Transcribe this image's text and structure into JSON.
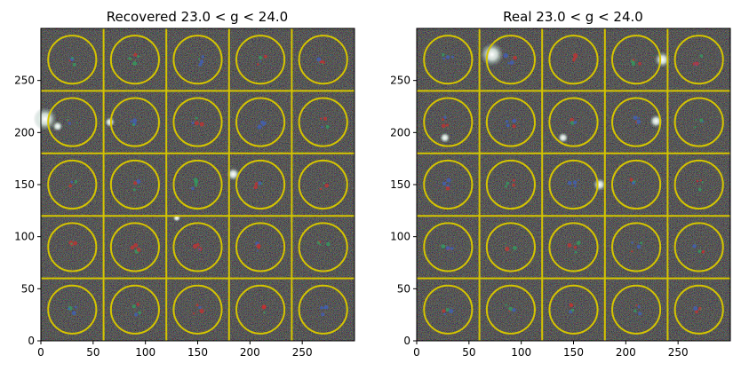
{
  "colors": {
    "grid_line": "#d4c400",
    "circle": "#d4c400",
    "background": "#1f1f1f",
    "axis": "#000000",
    "marker_red": "#c83030",
    "marker_green": "#30a060",
    "marker_blue": "#4060c0",
    "bright_source": "#eef4f0"
  },
  "chart_data": [
    {
      "type": "image",
      "title": "Recovered 23.0 < g < 24.0",
      "xlabel": "",
      "ylabel": "",
      "xlim": [
        0,
        300
      ],
      "ylim": [
        0,
        300
      ],
      "xticks": [
        0,
        50,
        100,
        150,
        200,
        250
      ],
      "yticks": [
        0,
        50,
        100,
        150,
        200,
        250
      ],
      "grid_divisions": [
        60,
        120,
        180,
        240
      ],
      "circle_centers": [
        30,
        90,
        150,
        210,
        270
      ],
      "circle_radius": 23,
      "bright_sources": [
        {
          "x": 4,
          "y": 213,
          "r": 9
        },
        {
          "x": 66,
          "y": 210,
          "r": 4
        },
        {
          "x": 184,
          "y": 160,
          "r": 5
        },
        {
          "x": 130,
          "y": 118,
          "r": 3
        },
        {
          "x": 16,
          "y": 206,
          "r": 4
        }
      ]
    },
    {
      "type": "image",
      "title": "Real 23.0 < g < 24.0",
      "xlabel": "",
      "ylabel": "",
      "xlim": [
        0,
        300
      ],
      "ylim": [
        0,
        300
      ],
      "xticks": [
        0,
        50,
        100,
        150,
        200,
        250
      ],
      "yticks": [
        0,
        50,
        100,
        150,
        200,
        250
      ],
      "grid_divisions": [
        60,
        120,
        180,
        240
      ],
      "circle_centers": [
        30,
        90,
        150,
        210,
        270
      ],
      "circle_radius": 23,
      "bright_sources": [
        {
          "x": 72,
          "y": 275,
          "r": 9
        },
        {
          "x": 235,
          "y": 270,
          "r": 6
        },
        {
          "x": 229,
          "y": 211,
          "r": 5
        },
        {
          "x": 175,
          "y": 150,
          "r": 5
        },
        {
          "x": 27,
          "y": 195,
          "r": 4
        },
        {
          "x": 140,
          "y": 195,
          "r": 4
        }
      ]
    }
  ]
}
